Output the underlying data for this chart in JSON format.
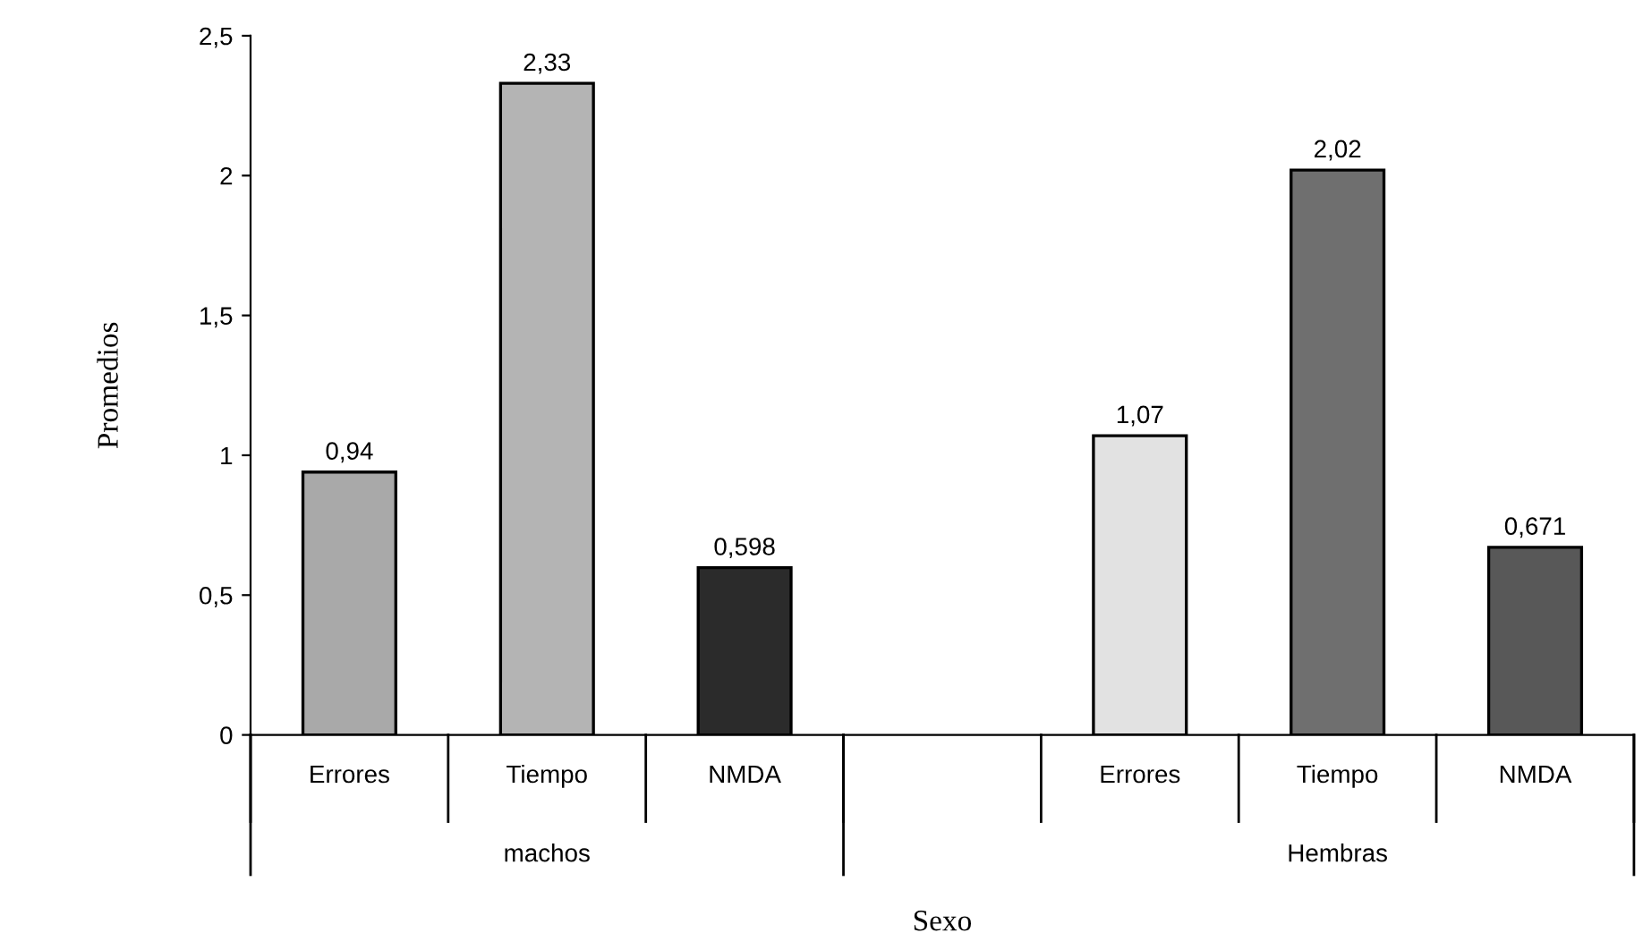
{
  "chart_data": {
    "type": "bar",
    "categories": [
      "Errores",
      "Tiempo",
      "NMDA",
      null,
      "Errores",
      "Tiempo",
      "NMDA"
    ],
    "values": [
      0.94,
      2.33,
      0.598,
      null,
      1.07,
      2.02,
      0.671
    ],
    "colors": [
      "#a9a9a9",
      "#b4b4b4",
      "#2b2b2b",
      "#ffffff",
      "#e2e2e2",
      "#6f6f6f",
      "#585858"
    ],
    "value_labels": [
      "0,94",
      "2,33",
      "0,598",
      null,
      "1,07",
      "2,02",
      "0,671"
    ],
    "annotations": [
      "machos",
      "Hembras"
    ],
    "xlabel": "Sexo",
    "ylabel": "Promedios",
    "ylim": [
      0,
      2.5
    ],
    "yticks": [
      0,
      {
        "value": 0.5,
        "label": "0,5"
      },
      1,
      {
        "value": 1.5,
        "label": "1,5"
      },
      2,
      {
        "value": 2.5,
        "label": "2,5"
      }
    ],
    "grid": false,
    "legend": false
  }
}
